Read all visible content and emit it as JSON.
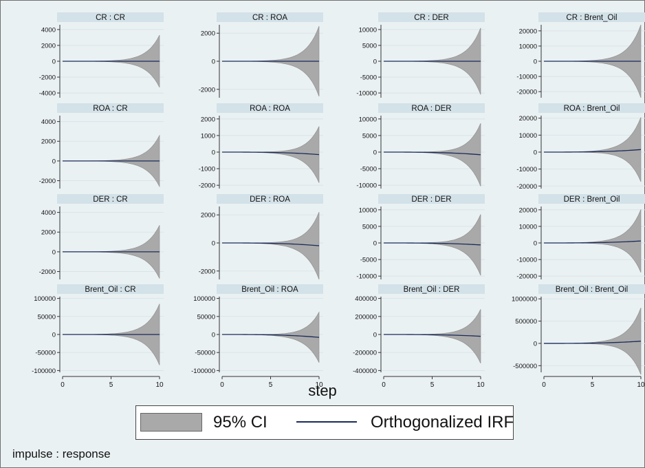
{
  "chart_data": {
    "type": "area",
    "layout": "grid 4x4 small multiples (impulse : response)",
    "x_axis": {
      "label": "step",
      "ticks": [
        0,
        5,
        10
      ],
      "range": [
        0,
        10
      ]
    },
    "legend": [
      "95% CI",
      "Orthogonalized IRF"
    ],
    "note": "impulse : response",
    "grid": true,
    "colors": {
      "ci_fill": "#a9a9a9",
      "irf_line": "#1a2a5a",
      "panel_header": "#d3e1e8",
      "background": "#eaf1f3"
    },
    "panels": [
      {
        "title": "CR : CR",
        "yticks": [
          4000,
          2000,
          0,
          -2000,
          -4000
        ],
        "ylim": [
          -4600,
          4600
        ],
        "ci_at_step10": 3300,
        "irf_at_step10": 0
      },
      {
        "title": "CR : ROA",
        "yticks": [
          2000,
          0,
          -2000
        ],
        "ylim": [
          -2600,
          2600
        ],
        "ci_at_step10": 2500,
        "irf_at_step10": 0
      },
      {
        "title": "CR : DER",
        "yticks": [
          10000,
          5000,
          0,
          -5000,
          -10000
        ],
        "ylim": [
          -11500,
          11500
        ],
        "ci_at_step10": 10500,
        "irf_at_step10": 0
      },
      {
        "title": "CR : Brent_Oil",
        "yticks": [
          20000,
          10000,
          0,
          -10000,
          -20000
        ],
        "ylim": [
          -24000,
          24000
        ],
        "ci_at_step10": 24000,
        "irf_at_step10": 0
      },
      {
        "title": "ROA : CR",
        "yticks": [
          4000,
          2000,
          0,
          -2000
        ],
        "ylim": [
          -2800,
          4600
        ],
        "ci_at_step10": 2600,
        "irf_at_step10": 0
      },
      {
        "title": "ROA : ROA",
        "yticks": [
          2000,
          1000,
          0,
          -1000,
          -2000
        ],
        "ylim": [
          -2200,
          2200
        ],
        "ci_at_step10": 1700,
        "irf_at_step10": -150
      },
      {
        "title": "ROA : DER",
        "yticks": [
          10000,
          5000,
          0,
          -5000,
          -10000
        ],
        "ylim": [
          -11000,
          11000
        ],
        "ci_at_step10": 9500,
        "irf_at_step10": -800
      },
      {
        "title": "ROA : Brent_Oil",
        "yticks": [
          20000,
          10000,
          0,
          -10000,
          -20000
        ],
        "ylim": [
          -21500,
          21500
        ],
        "ci_at_step10": 19000,
        "irf_at_step10": 1500
      },
      {
        "title": "DER : CR",
        "yticks": [
          4000,
          2000,
          0,
          -2000
        ],
        "ylim": [
          -2800,
          4600
        ],
        "ci_at_step10": 2700,
        "irf_at_step10": 0
      },
      {
        "title": "DER : ROA",
        "yticks": [
          2000,
          0,
          -2000
        ],
        "ylim": [
          -2600,
          2600
        ],
        "ci_at_step10": 2400,
        "irf_at_step10": -200
      },
      {
        "title": "DER : DER",
        "yticks": [
          10000,
          5000,
          0,
          -5000,
          -10000
        ],
        "ylim": [
          -11000,
          11000
        ],
        "ci_at_step10": 9200,
        "irf_at_step10": -600
      },
      {
        "title": "DER : Brent_Oil",
        "yticks": [
          20000,
          10000,
          0,
          -10000,
          -20000
        ],
        "ylim": [
          -22000,
          22000
        ],
        "ci_at_step10": 19000,
        "irf_at_step10": 1200
      },
      {
        "title": "Brent_Oil : CR",
        "yticks": [
          100000,
          50000,
          0,
          -50000,
          -100000
        ],
        "ylim": [
          -105000,
          105000
        ],
        "ci_at_step10": 85000,
        "irf_at_step10": 0
      },
      {
        "title": "Brent_Oil : ROA",
        "yticks": [
          100000,
          50000,
          0,
          -50000,
          -100000
        ],
        "ylim": [
          -105000,
          105000
        ],
        "ci_at_step10": 70000,
        "irf_at_step10": -8000
      },
      {
        "title": "Brent_Oil : DER",
        "yticks": [
          400000,
          200000,
          0,
          -200000,
          -400000
        ],
        "ylim": [
          -420000,
          420000
        ],
        "ci_at_step10": 300000,
        "irf_at_step10": -20000
      },
      {
        "title": "Brent_Oil : Brent_Oil",
        "yticks": [
          1000000,
          500000,
          0,
          -500000
        ],
        "ylim": [
          -650000,
          1050000
        ],
        "ci_at_step10": 750000,
        "irf_at_step10": 50000
      }
    ]
  }
}
